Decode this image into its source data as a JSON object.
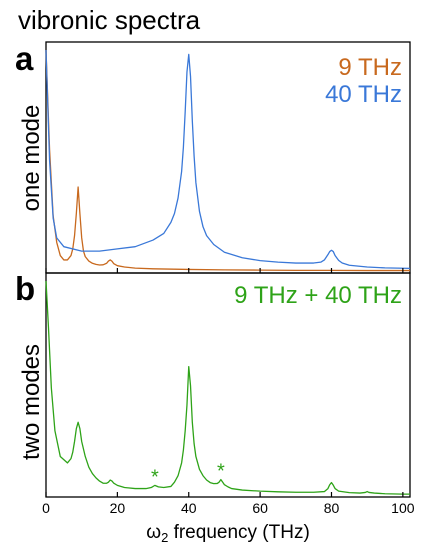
{
  "figure": {
    "title": "vibronic spectra",
    "x_axis_label_omega": "ω",
    "x_axis_label_sub": "2",
    "x_axis_label_rest": " frequency (THz)"
  },
  "colors": {
    "orange": "#c8691e",
    "blue": "#3a78d8",
    "green": "#2ea318",
    "axis": "#000000"
  },
  "chart_data": [
    {
      "type": "line",
      "panel_letter": "a",
      "ylabel": "one mode",
      "xlim": [
        0,
        102
      ],
      "x_ticks": [
        0,
        20,
        40,
        60,
        80,
        100
      ],
      "grid": false,
      "legend_placement": "top-right",
      "series": [
        {
          "name": "9 THz",
          "color": "orange",
          "x": [
            0,
            1,
            2,
            3,
            4,
            5,
            6,
            7,
            7.5,
            8,
            8.5,
            9,
            9.5,
            10,
            10.5,
            11,
            12,
            13,
            14,
            15,
            16,
            17,
            17.5,
            18,
            18.5,
            19,
            20,
            22,
            25,
            30,
            40,
            50,
            60,
            70,
            80,
            90,
            102
          ],
          "y": [
            1.0,
            0.55,
            0.25,
            0.13,
            0.07,
            0.05,
            0.05,
            0.07,
            0.1,
            0.16,
            0.26,
            0.38,
            0.26,
            0.15,
            0.09,
            0.065,
            0.045,
            0.035,
            0.03,
            0.027,
            0.028,
            0.035,
            0.045,
            0.05,
            0.044,
            0.033,
            0.024,
            0.018,
            0.013,
            0.01,
            0.007,
            0.005,
            0.004,
            0.003,
            0.003,
            0.002,
            0.002
          ]
        },
        {
          "name": "40 THz",
          "color": "blue",
          "x": [
            0,
            1,
            2,
            3,
            5,
            10,
            15,
            20,
            25,
            30,
            33,
            35,
            36,
            37,
            38,
            38.5,
            39,
            39.5,
            40,
            40.5,
            41,
            41.5,
            42,
            43,
            44,
            45,
            47,
            50,
            55,
            60,
            65,
            70,
            75,
            77,
            78,
            79,
            79.5,
            80,
            80.5,
            81,
            82,
            83,
            85,
            90,
            95,
            102
          ],
          "y": [
            1.0,
            0.5,
            0.24,
            0.15,
            0.11,
            0.09,
            0.09,
            0.1,
            0.11,
            0.14,
            0.17,
            0.22,
            0.26,
            0.33,
            0.45,
            0.56,
            0.72,
            0.9,
            0.98,
            0.88,
            0.68,
            0.52,
            0.4,
            0.27,
            0.2,
            0.16,
            0.12,
            0.085,
            0.06,
            0.047,
            0.04,
            0.036,
            0.036,
            0.04,
            0.05,
            0.074,
            0.088,
            0.094,
            0.088,
            0.07,
            0.048,
            0.036,
            0.026,
            0.018,
            0.014,
            0.012
          ]
        }
      ]
    },
    {
      "type": "line",
      "panel_letter": "b",
      "ylabel": "two modes",
      "xlim": [
        0,
        102
      ],
      "x_ticks": [
        0,
        20,
        40,
        60,
        80,
        100
      ],
      "x_tick_labels": [
        "0",
        "20",
        "40",
        "60",
        "80",
        "100"
      ],
      "grid": false,
      "legend_placement": "top-right",
      "series": [
        {
          "name": "9 THz + 40 THz",
          "color": "green",
          "x": [
            0,
            0.7,
            1.5,
            2.5,
            4,
            6,
            7,
            7.5,
            8,
            8.5,
            9,
            9.5,
            10,
            11,
            12,
            13,
            14,
            15,
            16,
            17,
            17.5,
            18,
            18.5,
            19,
            20,
            22,
            25,
            28,
            29.5,
            30.5,
            31.5,
            33,
            35,
            36,
            37,
            38,
            38.5,
            39,
            39.5,
            40,
            40.5,
            41,
            41.5,
            42,
            43,
            44,
            45,
            46,
            47,
            48,
            48.5,
            49,
            49.5,
            50,
            51,
            52,
            55,
            60,
            65,
            70,
            75,
            78,
            79,
            79.5,
            80,
            80.5,
            81,
            82,
            85,
            88,
            89.5,
            90,
            90.5,
            92,
            95,
            100,
            102
          ],
          "y": [
            1.0,
            0.78,
            0.5,
            0.3,
            0.18,
            0.15,
            0.17,
            0.2,
            0.25,
            0.31,
            0.34,
            0.31,
            0.25,
            0.18,
            0.13,
            0.1,
            0.08,
            0.065,
            0.055,
            0.055,
            0.06,
            0.07,
            0.065,
            0.055,
            0.045,
            0.035,
            0.03,
            0.03,
            0.035,
            0.045,
            0.038,
            0.035,
            0.04,
            0.06,
            0.09,
            0.15,
            0.21,
            0.3,
            0.42,
            0.6,
            0.51,
            0.34,
            0.24,
            0.18,
            0.12,
            0.09,
            0.07,
            0.058,
            0.053,
            0.054,
            0.06,
            0.072,
            0.06,
            0.048,
            0.038,
            0.03,
            0.023,
            0.018,
            0.015,
            0.013,
            0.013,
            0.016,
            0.03,
            0.048,
            0.058,
            0.046,
            0.03,
            0.018,
            0.011,
            0.009,
            0.012,
            0.016,
            0.012,
            0.009,
            0.006,
            0.004,
            0.004
          ]
        }
      ],
      "annotations": [
        {
          "text": "*",
          "x": 30.5,
          "y": 0.045
        },
        {
          "text": "*",
          "x": 49.0,
          "y": 0.072
        }
      ]
    }
  ]
}
